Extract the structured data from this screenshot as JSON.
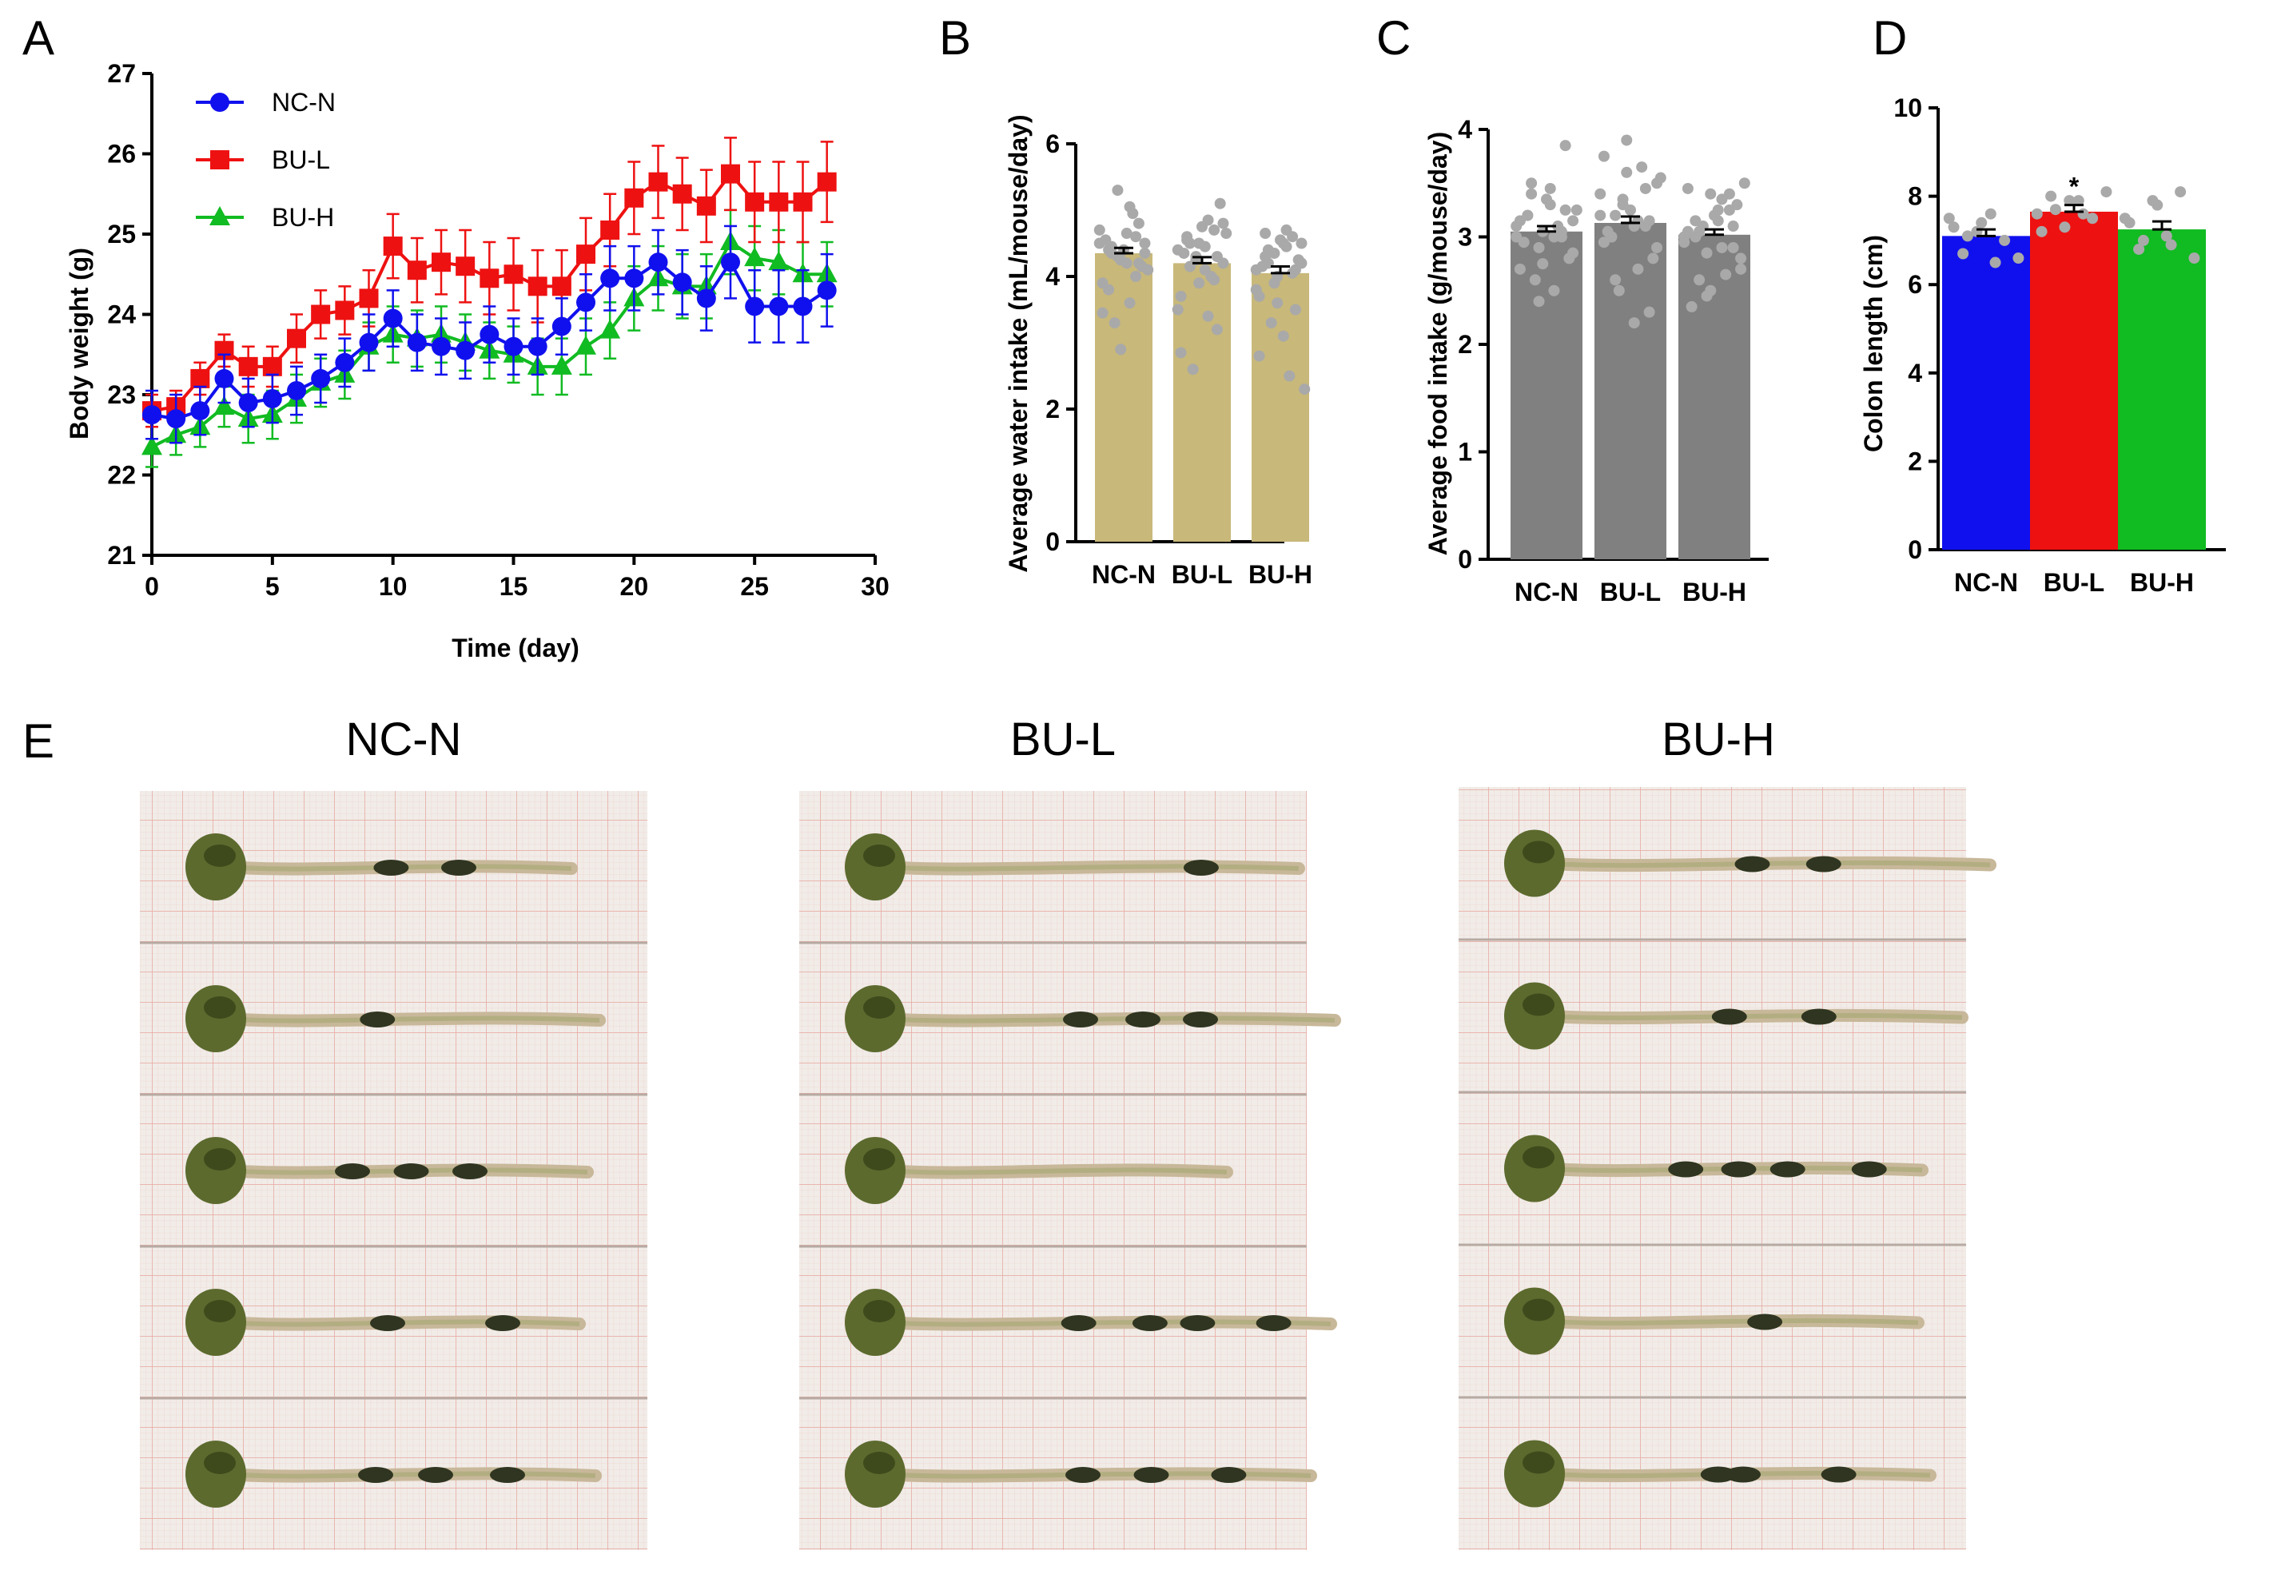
{
  "colors": {
    "nc_n": "#1010ee",
    "bu_l": "#ee1111",
    "bu_h": "#11bb22",
    "water_bar": "#c8b87a",
    "food_bar": "#808080",
    "dots": "#a9a9a9",
    "paper": "#f1ece8",
    "grid": "#e48f86",
    "colon": "#c8b89a",
    "cecum": "#5c6a2e",
    "pellet": "#2f3520"
  },
  "chart_data": [
    {
      "id": "A",
      "type": "line",
      "panel_label": "A",
      "xlabel": "Time (day)",
      "ylabel": "Body weight (g)",
      "xlim": [
        0,
        30
      ],
      "ylim": [
        21,
        27
      ],
      "xticks": [
        "0",
        "5",
        "10",
        "15",
        "20",
        "25",
        "30"
      ],
      "yticks": [
        "21",
        "22",
        "23",
        "24",
        "25",
        "26",
        "27"
      ],
      "legend_position": "top-left",
      "x": [
        0,
        1,
        2,
        3,
        4,
        5,
        6,
        7,
        8,
        9,
        10,
        11,
        12,
        13,
        14,
        15,
        16,
        17,
        18,
        19,
        20,
        21,
        22,
        23,
        24,
        25,
        26,
        27,
        28
      ],
      "series": [
        {
          "name": "NC-N",
          "marker": "circle",
          "color_key": "nc_n",
          "values": [
            22.75,
            22.7,
            22.8,
            23.2,
            22.9,
            22.95,
            23.05,
            23.2,
            23.4,
            23.65,
            23.95,
            23.65,
            23.6,
            23.55,
            23.75,
            23.6,
            23.6,
            23.85,
            24.15,
            24.45,
            24.45,
            24.65,
            24.4,
            24.2,
            24.65,
            24.1,
            24.1,
            24.1,
            24.3
          ],
          "errors": [
            0.3,
            0.3,
            0.3,
            0.3,
            0.3,
            0.3,
            0.3,
            0.3,
            0.3,
            0.35,
            0.35,
            0.35,
            0.35,
            0.35,
            0.35,
            0.35,
            0.35,
            0.35,
            0.35,
            0.4,
            0.4,
            0.4,
            0.4,
            0.4,
            0.45,
            0.45,
            0.45,
            0.45,
            0.45
          ]
        },
        {
          "name": "BU-L",
          "marker": "square",
          "color_key": "bu_l",
          "values": [
            22.8,
            22.85,
            23.2,
            23.55,
            23.35,
            23.35,
            23.7,
            24.0,
            24.05,
            24.2,
            24.85,
            24.55,
            24.65,
            24.6,
            24.45,
            24.5,
            24.35,
            24.35,
            24.75,
            25.05,
            25.45,
            25.65,
            25.5,
            25.35,
            25.75,
            25.4,
            25.4,
            25.4,
            25.65
          ],
          "errors": [
            0.2,
            0.2,
            0.2,
            0.2,
            0.25,
            0.25,
            0.3,
            0.3,
            0.3,
            0.35,
            0.4,
            0.4,
            0.4,
            0.45,
            0.45,
            0.45,
            0.45,
            0.45,
            0.45,
            0.45,
            0.45,
            0.45,
            0.45,
            0.45,
            0.45,
            0.5,
            0.5,
            0.5,
            0.5
          ]
        },
        {
          "name": "BU-H",
          "marker": "triangle",
          "color_key": "bu_h",
          "values": [
            22.35,
            22.5,
            22.6,
            22.85,
            22.7,
            22.75,
            22.95,
            23.15,
            23.25,
            23.6,
            23.75,
            23.7,
            23.75,
            23.65,
            23.55,
            23.5,
            23.35,
            23.35,
            23.6,
            23.8,
            24.2,
            24.45,
            24.35,
            24.35,
            24.9,
            24.7,
            24.65,
            24.5,
            24.5
          ],
          "errors": [
            0.25,
            0.25,
            0.25,
            0.25,
            0.3,
            0.3,
            0.3,
            0.3,
            0.3,
            0.3,
            0.35,
            0.35,
            0.35,
            0.35,
            0.35,
            0.35,
            0.35,
            0.35,
            0.35,
            0.35,
            0.4,
            0.4,
            0.4,
            0.4,
            0.4,
            0.4,
            0.4,
            0.4,
            0.4
          ]
        }
      ]
    },
    {
      "id": "B",
      "type": "bar",
      "panel_label": "B",
      "ylabel": "Average water intake (mL/mouse/day)",
      "ylim": [
        0,
        6
      ],
      "yticks": [
        "0",
        "2",
        "4",
        "6"
      ],
      "categories": [
        "NC-N",
        "BU-L",
        "BU-H"
      ],
      "values": [
        4.35,
        4.2,
        4.05
      ],
      "errors": [
        0.08,
        0.09,
        0.1
      ],
      "bar_color_key": "water_bar",
      "points": [
        [
          4.5,
          4.4,
          4.3,
          4.2,
          4.6,
          4.35,
          3.9,
          4.45,
          4.25,
          3.6,
          4.8,
          4.1,
          4.55,
          3.3,
          4.4,
          4.95,
          4.15,
          4.7,
          3.8,
          5.3,
          4.65,
          4.0,
          4.5,
          3.45,
          4.35,
          2.9,
          5.05,
          4.2
        ],
        [
          4.4,
          4.55,
          4.3,
          4.1,
          4.7,
          4.2,
          3.7,
          4.5,
          3.9,
          4.85,
          3.2,
          4.65,
          4.35,
          2.6,
          4.75,
          4.0,
          5.1,
          3.5,
          4.6,
          4.25,
          4.45,
          3.95,
          4.8,
          2.85,
          4.15,
          4.5,
          3.4,
          4.3
        ],
        [
          4.1,
          4.3,
          3.9,
          4.5,
          4.6,
          4.2,
          3.7,
          4.4,
          4.0,
          4.7,
          3.5,
          2.3,
          4.15,
          3.3,
          4.55,
          2.5,
          4.25,
          3.8,
          4.65,
          4.35,
          3.1,
          4.05,
          4.5,
          2.8,
          4.2,
          3.6,
          4.45,
          4.1
        ]
      ]
    },
    {
      "id": "C",
      "type": "bar",
      "panel_label": "C",
      "ylabel": "Average food intake (g/mouse/day)",
      "ylim": [
        0,
        4
      ],
      "yticks": [
        "0",
        "1",
        "2",
        "3",
        "4"
      ],
      "categories": [
        "NC-N",
        "BU-L",
        "BU-H"
      ],
      "values": [
        3.05,
        3.13,
        3.02
      ],
      "errors": [
        0.05,
        0.06,
        0.05
      ],
      "bar_color_key": "food_bar",
      "points": [
        [
          3.1,
          3.2,
          2.9,
          3.3,
          3.0,
          3.15,
          2.7,
          3.4,
          3.05,
          2.5,
          3.85,
          3.25,
          2.95,
          2.6,
          3.35,
          3.1,
          2.8,
          3.0,
          3.2,
          2.4,
          3.45,
          3.05,
          2.85,
          3.15,
          3.5,
          2.75,
          3.0,
          3.25
        ],
        [
          3.2,
          3.0,
          3.35,
          3.1,
          3.45,
          2.9,
          3.75,
          2.6,
          3.9,
          3.15,
          2.3,
          3.55,
          3.05,
          2.5,
          3.25,
          3.65,
          2.8,
          3.4,
          3.0,
          3.3,
          2.2,
          3.1,
          3.5,
          2.95,
          3.2,
          3.6,
          2.7,
          3.15
        ],
        [
          3.0,
          3.15,
          2.85,
          3.25,
          3.4,
          2.7,
          3.45,
          3.05,
          2.5,
          3.35,
          2.9,
          3.5,
          2.35,
          3.1,
          3.2,
          2.65,
          3.3,
          2.95,
          3.0,
          2.45,
          3.15,
          3.25,
          2.8,
          3.05,
          2.6,
          3.4,
          2.9,
          3.1
        ]
      ]
    },
    {
      "id": "D",
      "type": "bar",
      "panel_label": "D",
      "ylabel": "Colon length (cm)",
      "ylim": [
        0,
        10
      ],
      "yticks": [
        "0",
        "2",
        "4",
        "6",
        "8",
        "10"
      ],
      "categories": [
        "NC-N",
        "BU-L",
        "BU-H"
      ],
      "values": [
        7.1,
        7.65,
        7.25
      ],
      "errors": [
        0.15,
        0.15,
        0.18
      ],
      "bar_color_keys": [
        "nc_n",
        "bu_l",
        "bu_h"
      ],
      "significance": [
        "",
        "*",
        ""
      ],
      "points": [
        [
          7.5,
          6.7,
          7.2,
          7.6,
          7.0,
          6.6,
          7.3,
          7.1,
          7.4,
          6.5
        ],
        [
          7.6,
          8.0,
          7.3,
          7.9,
          7.5,
          8.1,
          7.2,
          7.7,
          7.9,
          7.6
        ],
        [
          7.5,
          6.8,
          7.9,
          7.1,
          8.1,
          6.6,
          7.4,
          7.0,
          7.8,
          6.9
        ]
      ]
    }
  ],
  "photos": {
    "panel_label": "E",
    "groups": [
      {
        "title": "NC-N"
      },
      {
        "title": "BU-L"
      },
      {
        "title": "BU-H"
      }
    ]
  }
}
